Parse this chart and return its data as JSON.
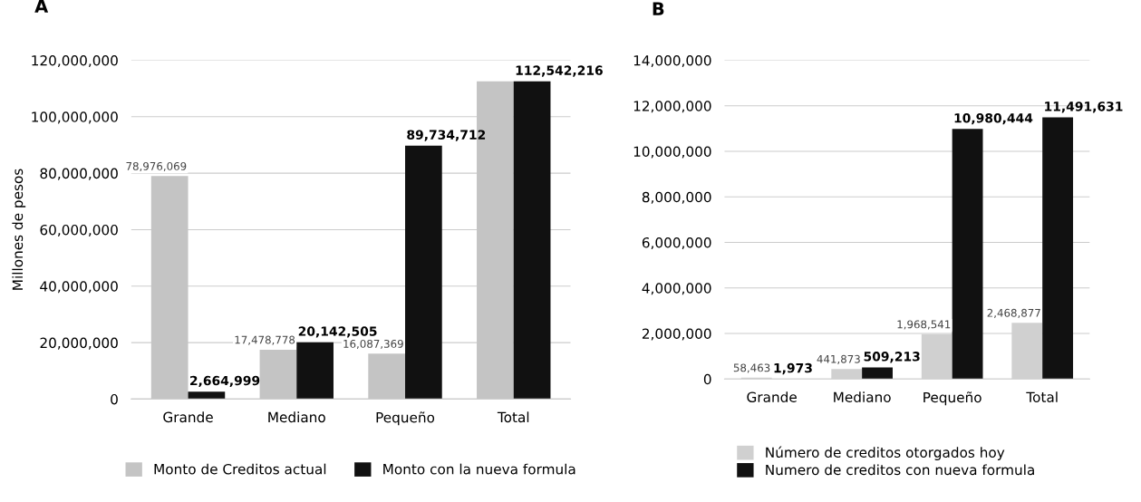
{
  "chart_data": [
    {
      "type": "bar",
      "title": "A",
      "ylabel": "Millones de pesos",
      "categories": [
        "Grande",
        "Mediano",
        "Pequeño",
        "Total"
      ],
      "series": [
        {
          "name": "Monto de Creditos actual",
          "color": "#c4c4c4",
          "values": [
            78976069,
            17478778,
            16087369,
            112542216
          ],
          "value_labels": [
            "78,976,069",
            "17,478,778",
            "16,087,369",
            null
          ]
        },
        {
          "name": "Monto con la nueva formula",
          "color": "#111111",
          "values": [
            2664999,
            20142505,
            89734712,
            112542216
          ],
          "value_labels": [
            "2,664,999",
            "20,142,505",
            "89,734,712",
            "112,542,216"
          ]
        }
      ],
      "ylim": [
        0,
        120000000
      ],
      "yticks": [
        {
          "value": 0,
          "label": "0"
        },
        {
          "value": 20000000,
          "label": "20,000,000"
        },
        {
          "value": 40000000,
          "label": "40,000,000"
        },
        {
          "value": 60000000,
          "label": "60,000,000"
        },
        {
          "value": 80000000,
          "label": "80,000,000"
        },
        {
          "value": 100000000,
          "label": "100,000,000"
        },
        {
          "value": 120000000,
          "label": "120,000,000"
        }
      ],
      "grid": "y",
      "legend": "bottom"
    },
    {
      "type": "bar",
      "title": "B",
      "categories": [
        "Grande",
        "Mediano",
        "Pequeño",
        "Total"
      ],
      "series": [
        {
          "name": "Número de creditos otorgados hoy",
          "color": "#d0d0d0",
          "values": [
            58463,
            441873,
            1968541,
            2468877
          ],
          "value_labels": [
            "58,463",
            "441,873",
            "1,968,541",
            "2,468,877"
          ]
        },
        {
          "name": "Numero de creditos con nueva formula",
          "color": "#111111",
          "values": [
            1973,
            509213,
            10980444,
            11491631
          ],
          "value_labels": [
            "1,973",
            "509,213",
            "10,980,444",
            "11,491,631"
          ]
        }
      ],
      "ylim": [
        0,
        14000000
      ],
      "yticks": [
        {
          "value": 0,
          "label": "0"
        },
        {
          "value": 2000000,
          "label": "2,000,000"
        },
        {
          "value": 4000000,
          "label": "4,000,000"
        },
        {
          "value": 6000000,
          "label": "6,000,000"
        },
        {
          "value": 8000000,
          "label": "8,000,000"
        },
        {
          "value": 10000000,
          "label": "10,000,000"
        },
        {
          "value": 12000000,
          "label": "12,000,000"
        },
        {
          "value": 14000000,
          "label": "14,000,000"
        }
      ],
      "grid": "y",
      "legend": "bottom"
    }
  ]
}
